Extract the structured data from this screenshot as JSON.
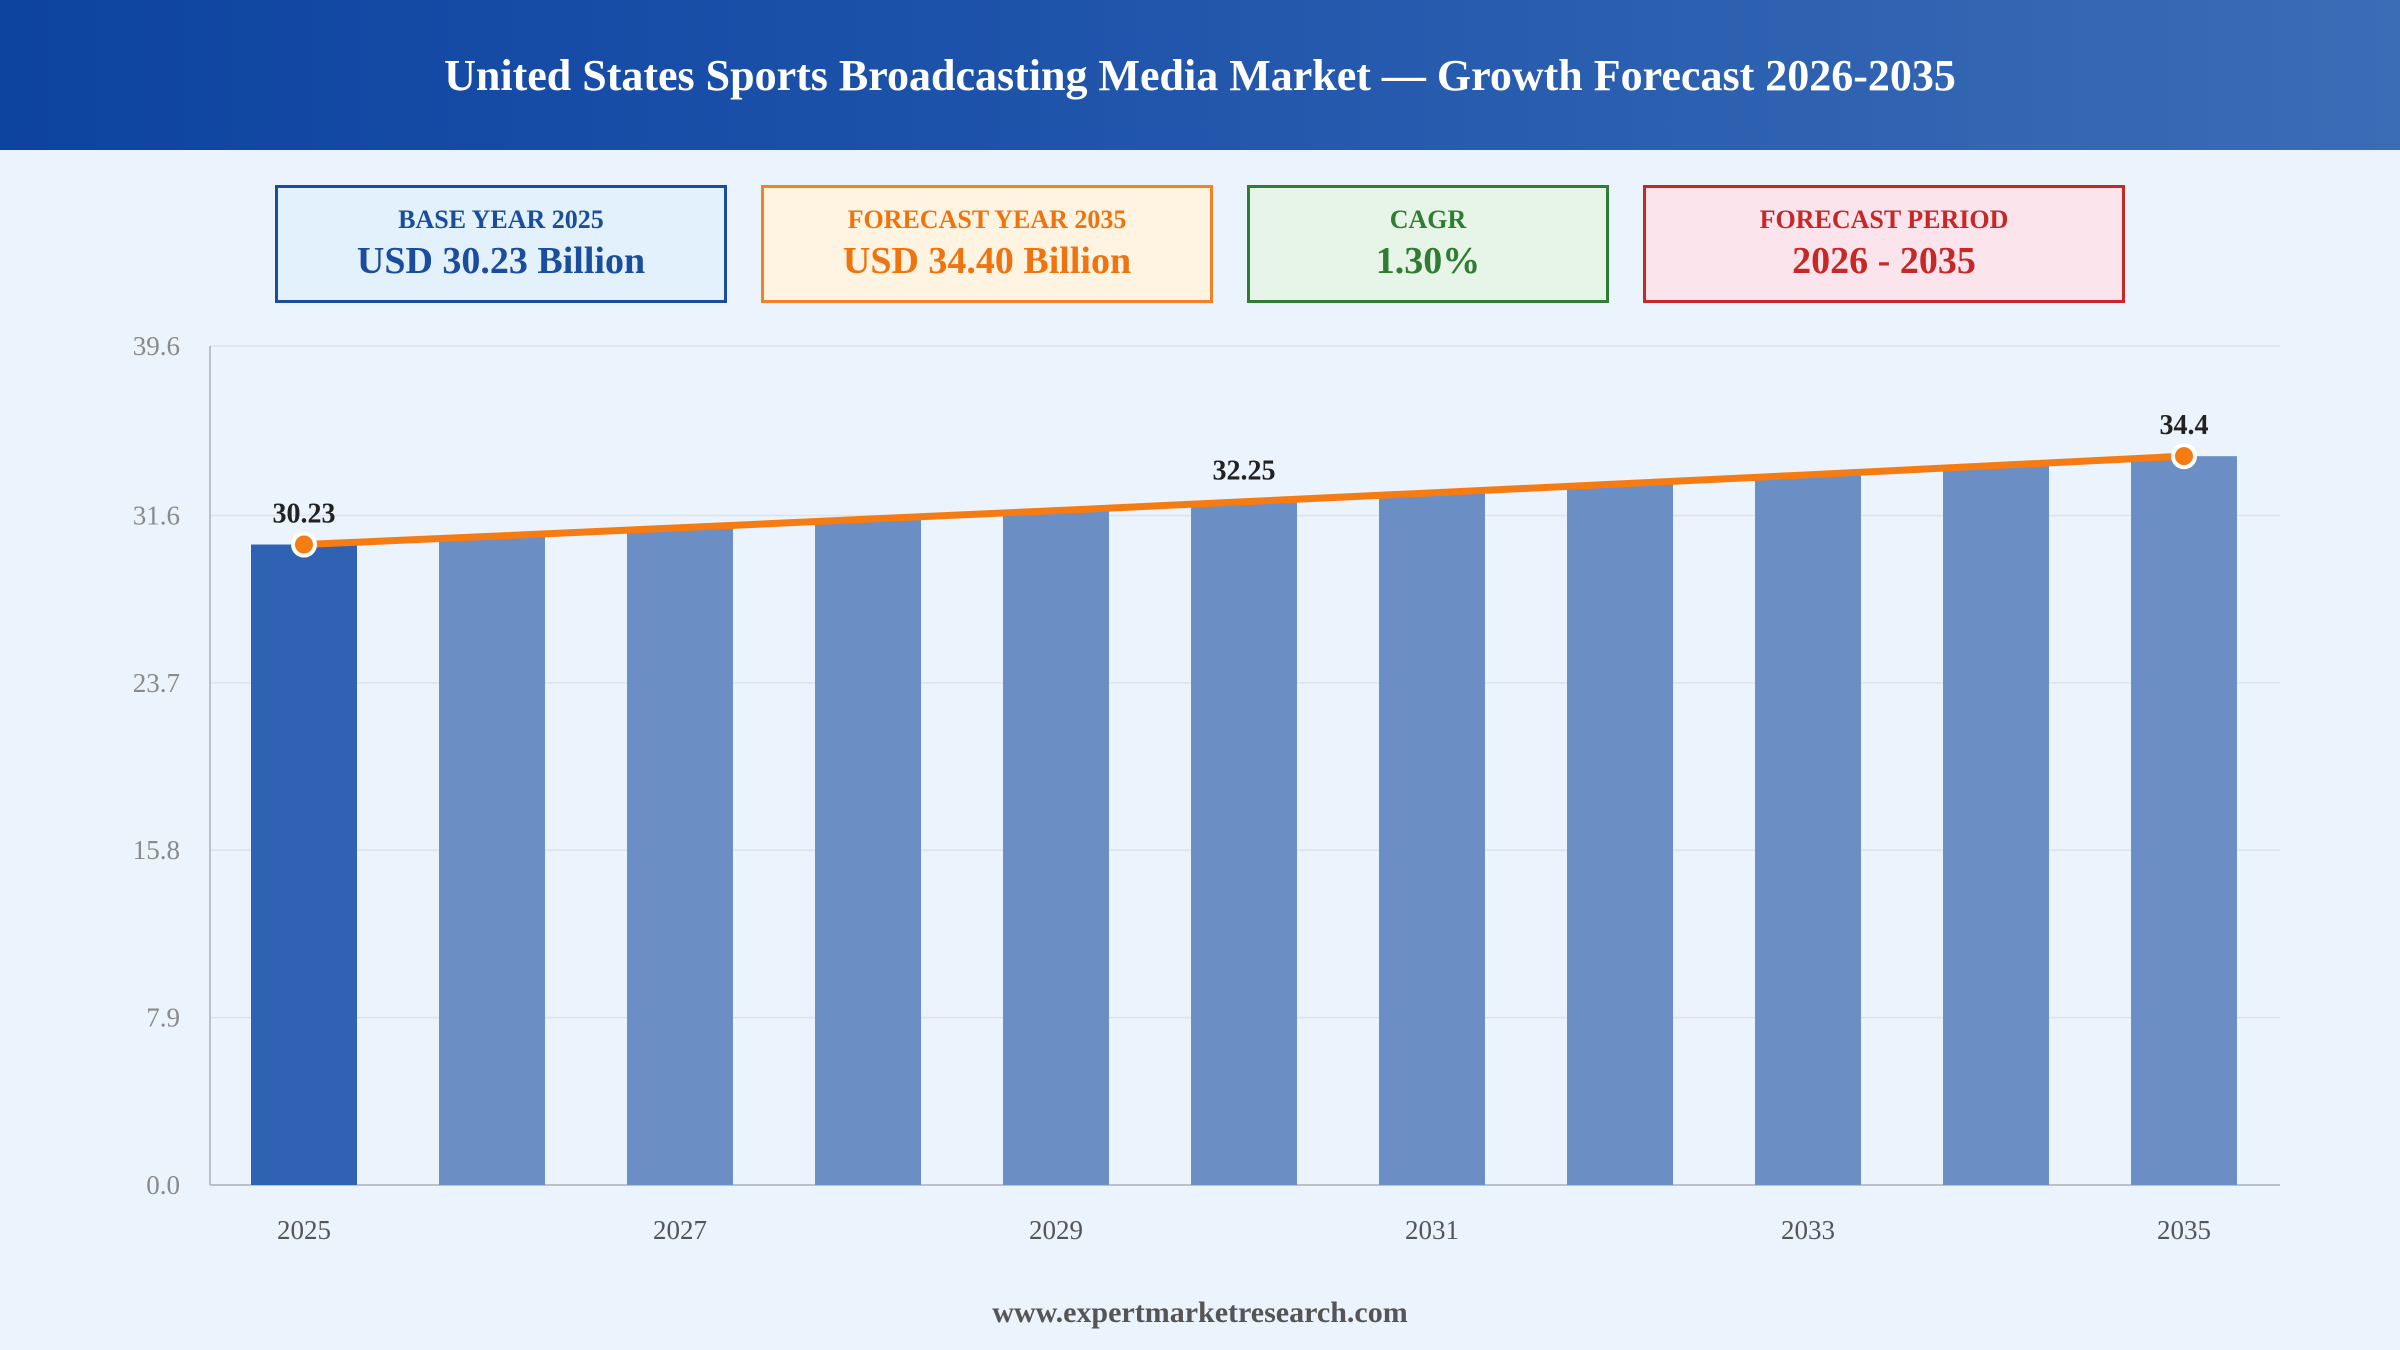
{
  "title": "United States Sports Broadcasting Media Market — Growth Forecast 2026-2035",
  "cards": {
    "base": {
      "label": "BASE YEAR 2025",
      "value": "USD 30.23 Billion"
    },
    "forecast": {
      "label": "FORECAST YEAR 2035",
      "value": "USD 34.40 Billion"
    },
    "cagr": {
      "label": "CAGR",
      "value": "1.30%"
    },
    "period": {
      "label": "FORECAST PERIOD",
      "value": "2026 - 2035"
    }
  },
  "footer": "www.expertmarketresearch.com",
  "colors": {
    "base_bar": "#2f62b3",
    "forecast_bar": "#6b8fc5",
    "trend_line": "#f57c12",
    "grid": "#dde3ea",
    "axis": "#b9c0c8",
    "tick_label": "#8a8a8a"
  },
  "chart_data": {
    "type": "bar",
    "categories": [
      "2025",
      "2026",
      "2027",
      "2028",
      "2029",
      "2030",
      "2031",
      "2032",
      "2033",
      "2034",
      "2035"
    ],
    "x_tick_labels": [
      "2025",
      "",
      "2027",
      "",
      "2029",
      "",
      "2031",
      "",
      "2033",
      "",
      "2035"
    ],
    "values": [
      30.23,
      30.62,
      31.02,
      31.43,
      31.83,
      32.25,
      32.67,
      33.09,
      33.52,
      33.96,
      34.4
    ],
    "y_ticks": [
      "0.0",
      "7.9",
      "15.8",
      "23.7",
      "31.6",
      "39.6"
    ],
    "ylim": [
      0,
      39.6
    ],
    "data_labels": [
      {
        "index": 0,
        "text": "30.23"
      },
      {
        "index": 5,
        "text": "32.25"
      },
      {
        "index": 10,
        "text": "34.4"
      }
    ],
    "trend_markers": [
      0,
      10
    ],
    "grid": true,
    "title": "",
    "xlabel": "",
    "ylabel": ""
  }
}
